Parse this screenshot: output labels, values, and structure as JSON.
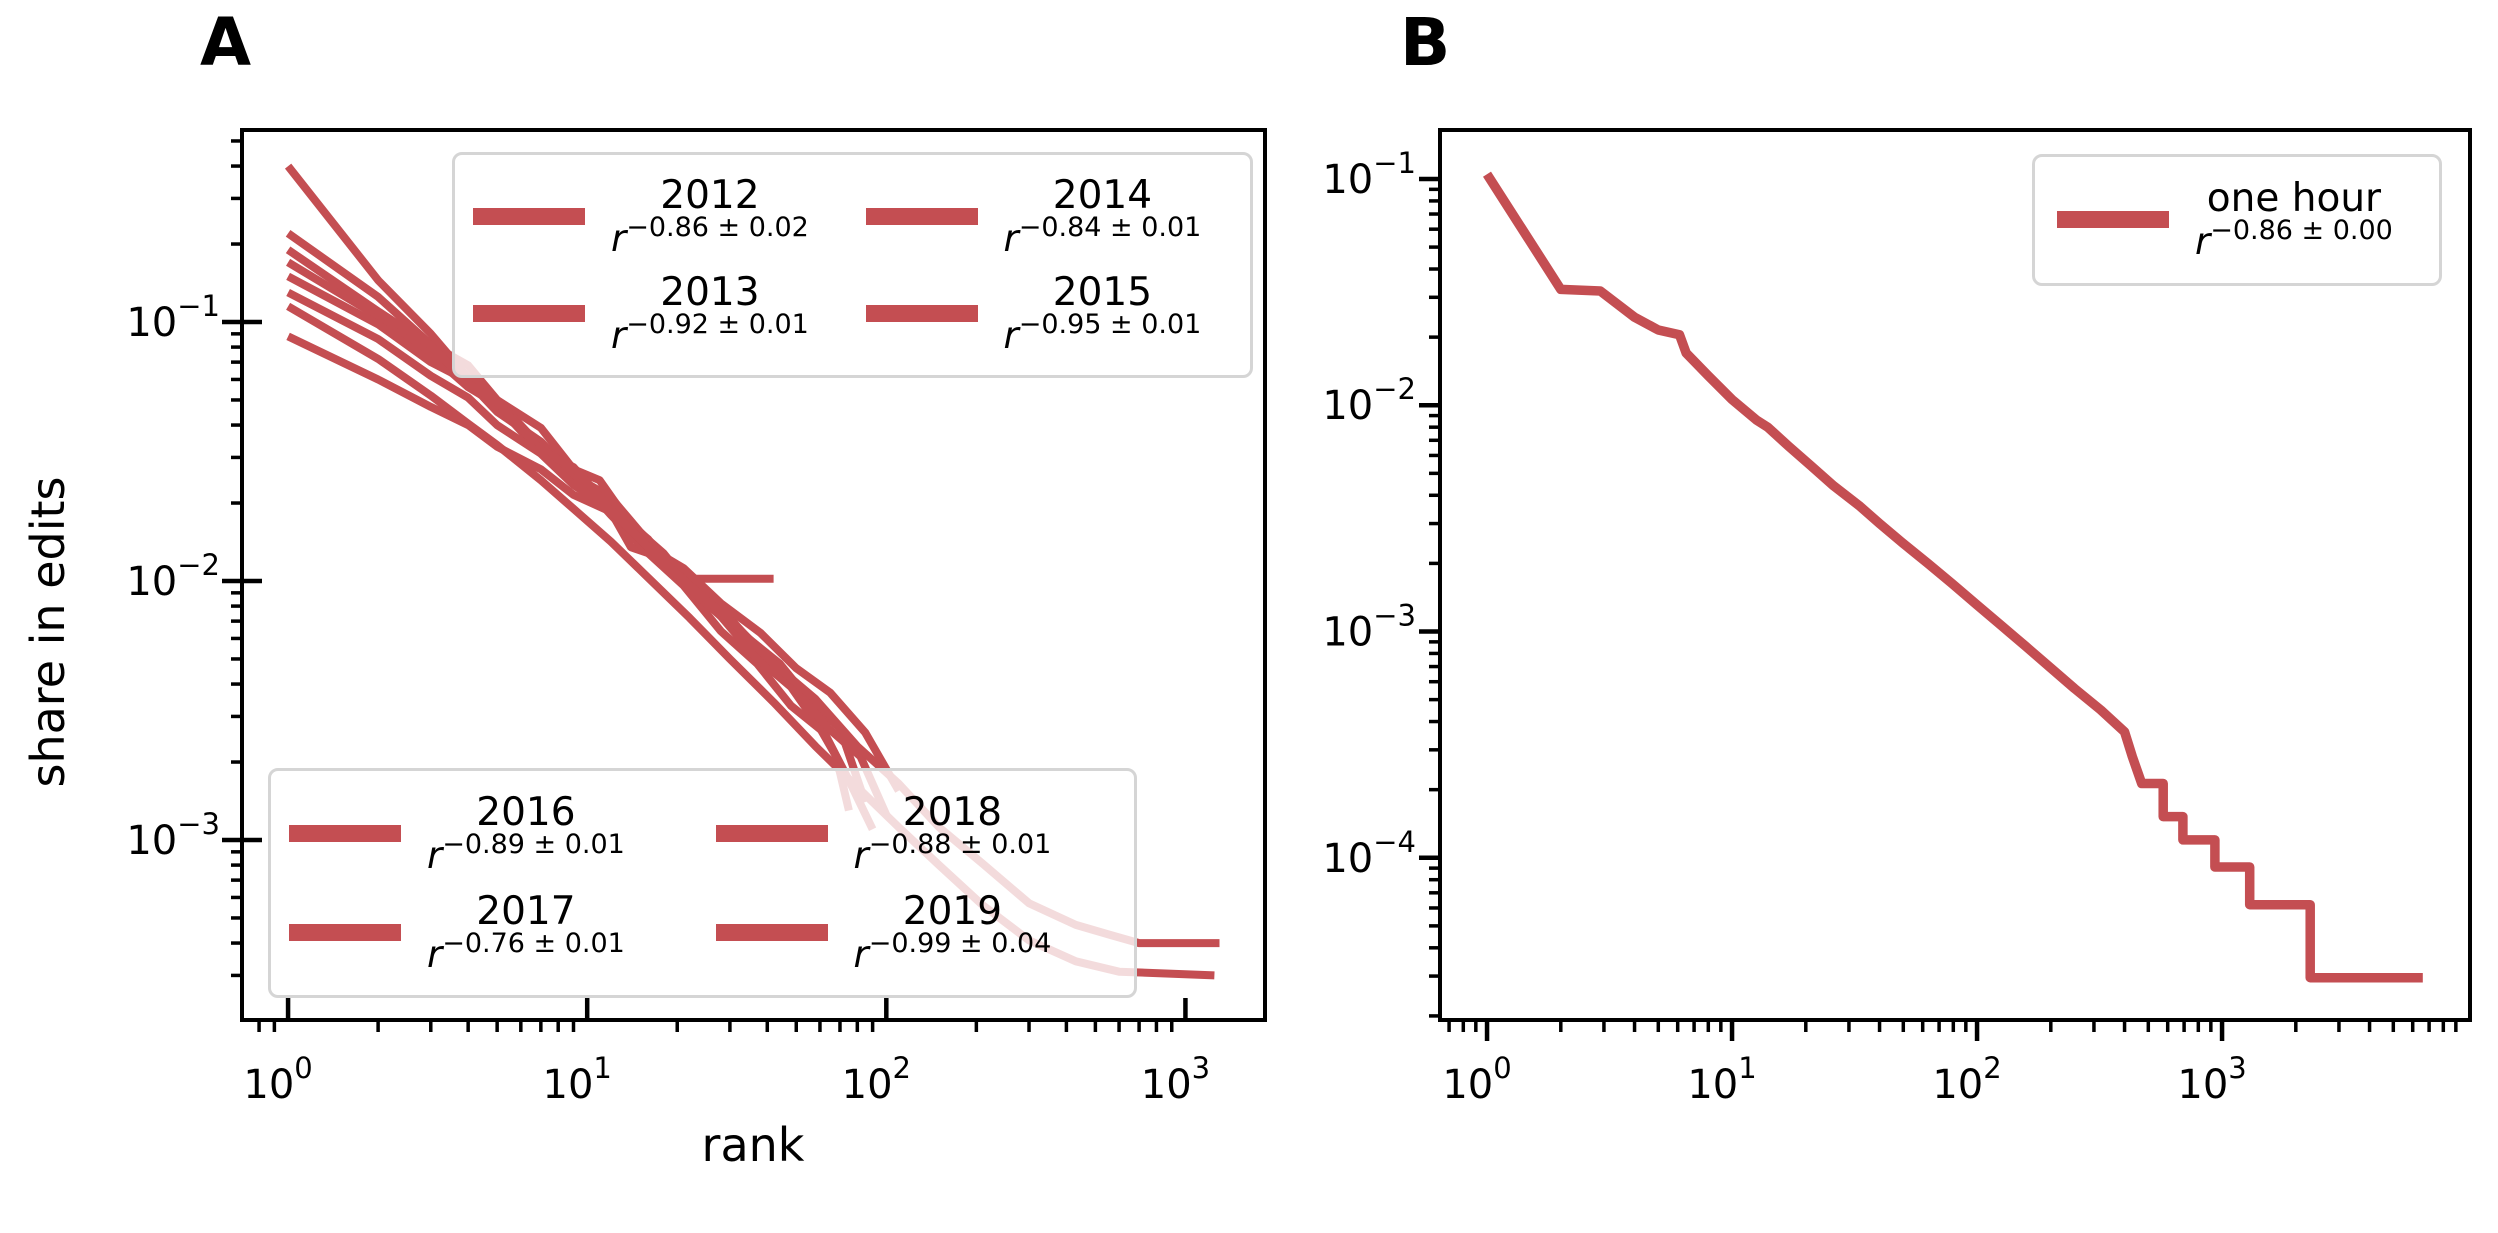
{
  "colors": {
    "line": "#c44e52",
    "legend_border": "#d5d5d5",
    "axis": "#000000"
  },
  "chart_data": [
    {
      "type": "line",
      "panel": "A",
      "xscale": "log",
      "yscale": "log",
      "xlabel": "rank",
      "ylabel": "share in edits",
      "xlim": [
        0.7,
        1850
      ],
      "ylim": [
        0.0002,
        0.55
      ],
      "grid": false,
      "x_ticks": [
        1,
        10,
        100,
        1000
      ],
      "y_ticks": [
        0.1,
        0.01,
        0.001
      ],
      "x_tick_labels": [
        {
          "base": "10",
          "exp": "0"
        },
        {
          "base": "10",
          "exp": "1"
        },
        {
          "base": "10",
          "exp": "2"
        },
        {
          "base": "10",
          "exp": "3"
        }
      ],
      "y_tick_labels": [
        {
          "base": "10",
          "exp": "−1"
        },
        {
          "base": "10",
          "exp": "−2"
        },
        {
          "base": "10",
          "exp": "−3"
        }
      ],
      "legend_top_position": "upper center",
      "legend_bottom_position": "lower left",
      "legend_top_entries": [
        {
          "year": "2012",
          "fit_base": "r",
          "fit_exp": "−0.86 ± 0.02"
        },
        {
          "year": "2013",
          "fit_base": "r",
          "fit_exp": "−0.92 ± 0.01"
        },
        {
          "year": "2014",
          "fit_base": "r",
          "fit_exp": "−0.84 ± 0.01"
        },
        {
          "year": "2015",
          "fit_base": "r",
          "fit_exp": "−0.95 ± 0.01"
        }
      ],
      "legend_bottom_entries": [
        {
          "year": "2016",
          "fit_base": "r",
          "fit_exp": "−0.89 ± 0.01"
        },
        {
          "year": "2017",
          "fit_base": "r",
          "fit_exp": "−0.76 ± 0.01"
        },
        {
          "year": "2018",
          "fit_base": "r",
          "fit_exp": "−0.88 ± 0.01"
        },
        {
          "year": "2019",
          "fit_base": "r",
          "fit_exp": "−0.99 ± 0.04"
        }
      ],
      "series": [
        {
          "name": "2012",
          "fit": "r^(-0.86±0.02)",
          "points": [
            [
              1,
              0.17
            ],
            [
              2,
              0.105
            ],
            [
              3,
              0.075
            ],
            [
              4,
              0.056
            ],
            [
              5,
              0.048
            ],
            [
              6,
              0.038
            ],
            [
              8,
              0.027
            ],
            [
              10,
              0.0225
            ],
            [
              12,
              0.0185
            ],
            [
              14,
              0.0135
            ],
            [
              17,
              0.0125
            ],
            [
              21,
              0.0102
            ],
            [
              42,
              0.0102
            ]
          ]
        },
        {
          "name": "2013",
          "fit": "r^(-0.92±0.01)",
          "points": [
            [
              1,
              0.22
            ],
            [
              2,
              0.125
            ],
            [
              3,
              0.082
            ],
            [
              4,
              0.068
            ],
            [
              5,
              0.05
            ],
            [
              7,
              0.039
            ],
            [
              9,
              0.027
            ],
            [
              11,
              0.0245
            ],
            [
              14,
              0.0165
            ],
            [
              18,
              0.0128
            ],
            [
              23,
              0.009
            ],
            [
              30,
              0.0068
            ],
            [
              38,
              0.0049
            ],
            [
              48,
              0.0039
            ],
            [
              60,
              0.0027
            ],
            [
              68,
              0.0021
            ],
            [
              75,
              0.0013
            ]
          ]
        },
        {
          "name": "2014",
          "fit": "r^(-0.84±0.01)",
          "points": [
            [
              1,
              0.15
            ],
            [
              2,
              0.098
            ],
            [
              3,
              0.07
            ],
            [
              4,
              0.059
            ],
            [
              5,
              0.045
            ],
            [
              7,
              0.0345
            ],
            [
              9,
              0.0255
            ],
            [
              12,
              0.021
            ],
            [
              15,
              0.0155
            ],
            [
              20,
              0.0112
            ],
            [
              26,
              0.0087
            ],
            [
              34,
              0.0061
            ],
            [
              44,
              0.0048
            ],
            [
              56,
              0.0034
            ],
            [
              70,
              0.0027
            ],
            [
              85,
              0.0014
            ]
          ]
        },
        {
          "name": "2015",
          "fit": "r^(-0.95±0.01)",
          "points": [
            [
              1,
              0.4
            ],
            [
              2,
              0.145
            ],
            [
              3,
              0.09
            ],
            [
              4,
              0.061
            ],
            [
              5,
              0.05
            ],
            [
              7,
              0.033
            ],
            [
              9,
              0.026
            ],
            [
              12,
              0.018
            ],
            [
              16,
              0.0128
            ],
            [
              21,
              0.0096
            ],
            [
              28,
              0.0064
            ],
            [
              37,
              0.0048
            ],
            [
              48,
              0.0033
            ],
            [
              62,
              0.0026
            ],
            [
              75,
              0.0017
            ],
            [
              90,
              0.0011
            ]
          ]
        },
        {
          "name": "2016",
          "fit": "r^(-0.89±0.01)",
          "points": [
            [
              1,
              0.19
            ],
            [
              2,
              0.11
            ],
            [
              3,
              0.081
            ],
            [
              4,
              0.058
            ],
            [
              5,
              0.049
            ],
            [
              7,
              0.032
            ],
            [
              9,
              0.0275
            ],
            [
              12,
              0.019
            ],
            [
              16,
              0.0145
            ],
            [
              21,
              0.0098
            ],
            [
              28,
              0.0073
            ],
            [
              37,
              0.005
            ],
            [
              49,
              0.0039
            ],
            [
              64,
              0.0027
            ],
            [
              82,
              0.0021
            ],
            [
              100,
              0.00125
            ]
          ]
        },
        {
          "name": "2017",
          "fit": "r^(-0.76±0.01)",
          "points": [
            [
              1,
              0.088
            ],
            [
              2,
              0.06
            ],
            [
              3,
              0.047
            ],
            [
              4,
              0.04
            ],
            [
              5,
              0.033
            ],
            [
              7,
              0.027
            ],
            [
              9,
              0.0215
            ],
            [
              12,
              0.0185
            ],
            [
              16,
              0.0135
            ],
            [
              21,
              0.0112
            ],
            [
              28,
              0.0082
            ],
            [
              38,
              0.0063
            ],
            [
              50,
              0.0046
            ],
            [
              65,
              0.0037
            ],
            [
              85,
              0.0026
            ],
            [
              110,
              0.00155
            ]
          ]
        },
        {
          "name": "2018",
          "fit": "r^(-0.88±0.01)",
          "points": [
            [
              1,
              0.13
            ],
            [
              2,
              0.086
            ],
            [
              3,
              0.062
            ],
            [
              4,
              0.051
            ],
            [
              5,
              0.04
            ],
            [
              7,
              0.031
            ],
            [
              9,
              0.0235
            ],
            [
              12,
              0.0188
            ],
            [
              16,
              0.0135
            ],
            [
              22,
              0.0096
            ],
            [
              30,
              0.0071
            ],
            [
              42,
              0.0048
            ],
            [
              58,
              0.0035
            ],
            [
              80,
              0.0023
            ],
            [
              110,
              0.00165
            ],
            [
              150,
              0.00112
            ],
            [
              210,
              0.00081
            ],
            [
              300,
              0.00057
            ],
            [
              430,
              0.00047
            ],
            [
              560,
              0.00043
            ],
            [
              700,
              0.0004
            ],
            [
              1300,
              0.0004
            ]
          ]
        },
        {
          "name": "2019",
          "fit": "r^(-0.99±0.04)",
          "points": [
            [
              1,
              0.115
            ],
            [
              2,
              0.072
            ],
            [
              3,
              0.052
            ],
            [
              4,
              0.0405
            ],
            [
              5,
              0.0335
            ],
            [
              7,
              0.0245
            ],
            [
              9,
              0.019
            ],
            [
              12,
              0.0142
            ],
            [
              16,
              0.0103
            ],
            [
              22,
              0.0072
            ],
            [
              30,
              0.005
            ],
            [
              42,
              0.0034
            ],
            [
              58,
              0.0023
            ],
            [
              80,
              0.0016
            ],
            [
              110,
              0.00112
            ],
            [
              150,
              0.0008
            ],
            [
              210,
              0.00056
            ],
            [
              300,
              0.00041
            ],
            [
              430,
              0.00034
            ],
            [
              600,
              0.00031
            ],
            [
              1250,
              0.0003
            ]
          ]
        }
      ]
    },
    {
      "type": "line",
      "panel": "B",
      "xscale": "log",
      "yscale": "log",
      "xlabel": "",
      "ylabel": "",
      "xlim": [
        0.64,
        10000
      ],
      "ylim": [
        1.92e-05,
        0.16
      ],
      "grid": false,
      "x_ticks": [
        1,
        10,
        100,
        1000
      ],
      "y_ticks": [
        0.1,
        0.01,
        0.001,
        0.0001
      ],
      "x_tick_labels": [
        {
          "base": "10",
          "exp": "0"
        },
        {
          "base": "10",
          "exp": "1"
        },
        {
          "base": "10",
          "exp": "2"
        },
        {
          "base": "10",
          "exp": "3"
        }
      ],
      "y_tick_labels": [
        {
          "base": "10",
          "exp": "−1"
        },
        {
          "base": "10",
          "exp": "−2"
        },
        {
          "base": "10",
          "exp": "−3"
        },
        {
          "base": "10",
          "exp": "−4"
        }
      ],
      "legend_position": "upper right",
      "legend_entries": [
        {
          "label": "one hour",
          "fit_base": "r",
          "fit_exp": "−0.86 ± 0.00"
        }
      ],
      "series": [
        {
          "name": "one hour",
          "fit": "r^(-0.86±0.00)",
          "points": [
            [
              1,
              0.105
            ],
            [
              2,
              0.0325
            ],
            [
              2.9,
              0.032
            ],
            [
              4,
              0.0245
            ],
            [
              5,
              0.0215
            ],
            [
              6.1,
              0.0205
            ],
            [
              6.5,
              0.017
            ],
            [
              8,
              0.0135
            ],
            [
              10,
              0.0106
            ],
            [
              12.6,
              0.0086
            ],
            [
              14,
              0.008
            ],
            [
              17,
              0.0066
            ],
            [
              21,
              0.0054
            ],
            [
              26,
              0.0044
            ],
            [
              33,
              0.0036
            ],
            [
              40,
              0.003
            ],
            [
              50,
              0.00245
            ],
            [
              63,
              0.002
            ],
            [
              79,
              0.00163
            ],
            [
              100,
              0.00131
            ],
            [
              126,
              0.00106
            ],
            [
              158,
              0.00086
            ],
            [
              200,
              0.00069
            ],
            [
              250,
              0.00056
            ],
            [
              320,
              0.00045
            ],
            [
              400,
              0.00036
            ],
            [
              430,
              0.00028
            ],
            [
              470,
              0.000213
            ],
            [
              575,
              0.000213
            ],
            [
              575,
              0.000152
            ],
            [
              692,
              0.000152
            ],
            [
              692,
              0.00012
            ],
            [
              935,
              0.00012
            ],
            [
              935,
              9.1e-05
            ],
            [
              1297,
              9.1e-05
            ],
            [
              1297,
              6.2e-05
            ],
            [
              2290,
              6.2e-05
            ],
            [
              2290,
              2.95e-05
            ],
            [
              6600,
              2.95e-05
            ]
          ]
        }
      ]
    }
  ]
}
